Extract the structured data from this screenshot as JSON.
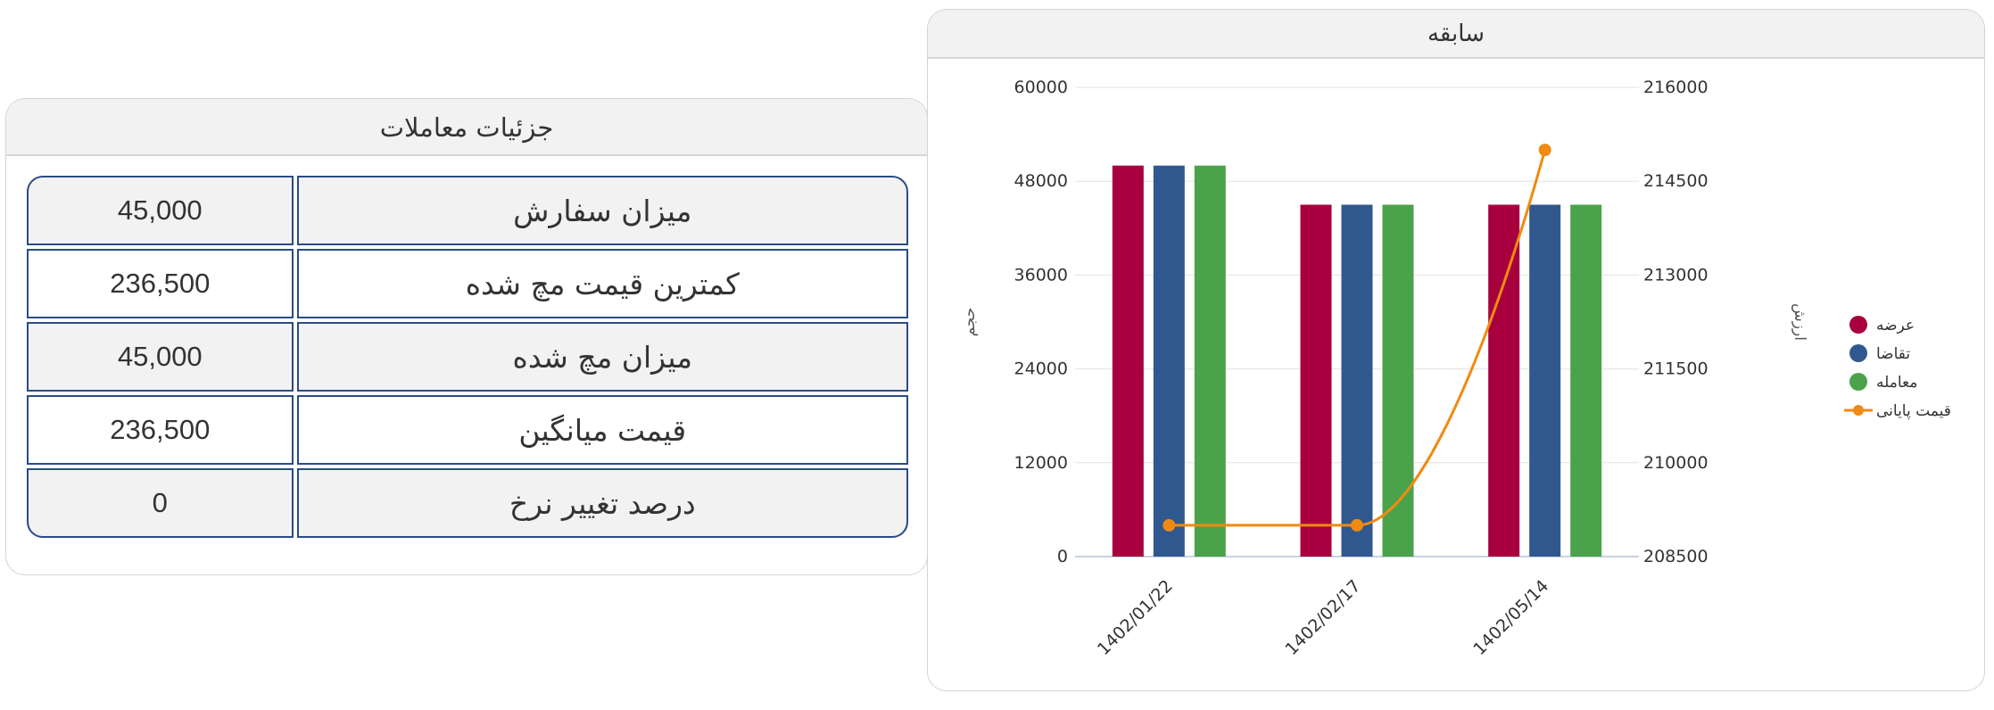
{
  "details": {
    "title": "جزئیات معاملات",
    "rows": [
      {
        "label": "میزان سفارش",
        "value": "45,000"
      },
      {
        "label": "کمترین قیمت مچ شده",
        "value": "236,500"
      },
      {
        "label": "میزان مچ شده",
        "value": "45,000"
      },
      {
        "label": "قیمت میانگین",
        "value": "236,500"
      },
      {
        "label": "درصد تغییر نرخ",
        "value": "0"
      }
    ]
  },
  "history": {
    "title": "سابقه"
  },
  "chart_data": {
    "type": "bar",
    "title": "",
    "categories": [
      "1402/01/22",
      "1402/02/17",
      "1402/05/14"
    ],
    "left_axis": {
      "label": "حجم",
      "min": 0,
      "max": 60000,
      "ticks": [
        0,
        12000,
        24000,
        36000,
        48000,
        60000
      ]
    },
    "right_axis": {
      "label": "ارزش",
      "min": 208500,
      "max": 216000,
      "ticks": [
        208500,
        210000,
        211500,
        213000,
        214500,
        216000
      ]
    },
    "grid": true,
    "legend_position": "right",
    "series": [
      {
        "name": "عرضه",
        "type": "bar",
        "axis": "left",
        "color": "#a8003f",
        "values": [
          50000,
          45000,
          45000
        ]
      },
      {
        "name": "تقاضا",
        "type": "bar",
        "axis": "left",
        "color": "#30588e",
        "values": [
          50000,
          45000,
          45000
        ]
      },
      {
        "name": "معامله",
        "type": "bar",
        "axis": "left",
        "color": "#4aa34a",
        "values": [
          50000,
          45000,
          45000
        ]
      },
      {
        "name": "قیمت پایانی",
        "type": "line",
        "axis": "right",
        "color": "#f08a12",
        "values": [
          209000,
          209000,
          215000
        ]
      }
    ]
  }
}
